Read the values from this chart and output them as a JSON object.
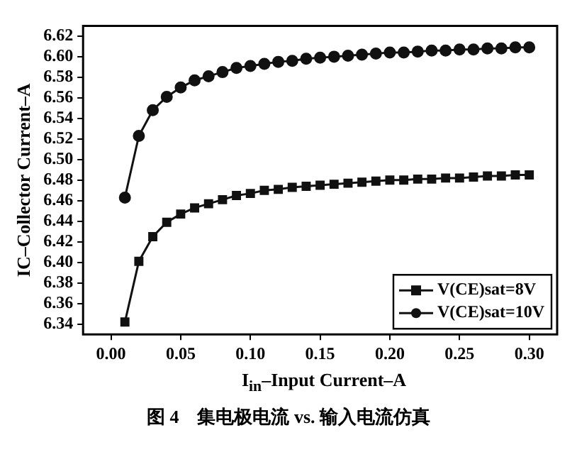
{
  "chart_data": {
    "type": "line",
    "ylabel": "IC–Collector Current–A",
    "xlabel": "I$_{in}$–Input Current–A",
    "annotations": [
      "图 4　集电极电流 vs. 输入电流仿真"
    ],
    "x": [
      0.01,
      0.02,
      0.03,
      0.04,
      0.05,
      0.06,
      0.07,
      0.08,
      0.09,
      0.1,
      0.11,
      0.12,
      0.13,
      0.14,
      0.15,
      0.16,
      0.17,
      0.18,
      0.19,
      0.2,
      0.21,
      0.22,
      0.23,
      0.24,
      0.25,
      0.26,
      0.27,
      0.28,
      0.29,
      0.3
    ],
    "series": [
      {
        "name": "V(CE)sat=8V",
        "color": "#111111",
        "marker": "square",
        "values": [
          6.342,
          6.401,
          6.425,
          6.439,
          6.447,
          6.453,
          6.457,
          6.461,
          6.465,
          6.467,
          6.47,
          6.471,
          6.473,
          6.474,
          6.475,
          6.476,
          6.477,
          6.478,
          6.479,
          6.48,
          6.48,
          6.481,
          6.481,
          6.482,
          6.482,
          6.483,
          6.484,
          6.484,
          6.485,
          6.485
        ]
      },
      {
        "name": "V(CE)sat=10V",
        "color": "#111111",
        "marker": "circle",
        "values": [
          6.463,
          6.523,
          6.548,
          6.561,
          6.57,
          6.577,
          6.581,
          6.585,
          6.589,
          6.591,
          6.593,
          6.595,
          6.596,
          6.598,
          6.599,
          6.6,
          6.601,
          6.602,
          6.603,
          6.604,
          6.604,
          6.605,
          6.606,
          6.606,
          6.607,
          6.607,
          6.608,
          6.608,
          6.609,
          6.609
        ]
      }
    ],
    "xlim": [
      -0.02,
      0.32
    ],
    "xticks": [
      {
        "value": 0,
        "label": "0.00"
      },
      0.05,
      {
        "value": 0.1,
        "label": "0.10"
      },
      0.15,
      {
        "value": 0.2,
        "label": "0.20"
      },
      0.25,
      {
        "value": 0.3,
        "label": "0.30"
      }
    ],
    "ylim": [
      6.33,
      6.63
    ],
    "yticks": [
      6.34,
      6.36,
      6.38,
      {
        "value": 6.4,
        "label": "6.40"
      },
      6.42,
      6.44,
      6.46,
      6.48,
      {
        "value": 6.5,
        "label": "6.50"
      },
      6.52,
      6.54,
      6.56,
      6.58,
      {
        "value": 6.6,
        "label": "6.60"
      },
      6.62
    ],
    "grid": false,
    "legend": "bottom right",
    "line_style": "solid"
  }
}
